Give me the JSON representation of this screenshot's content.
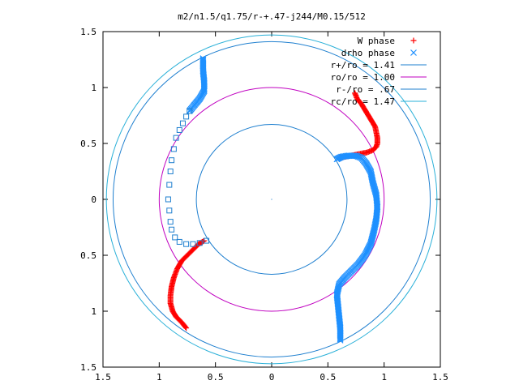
{
  "chart_data": {
    "type": "scatter",
    "title": "m2/n1.5/q1.75/r-+.47-j244/M0.15/512",
    "xlim": [
      -1.5,
      1.5
    ],
    "ylim": [
      -1.5,
      1.5
    ],
    "x_ticks": [
      -1.5,
      -1,
      -0.5,
      0,
      0.5,
      1,
      1.5
    ],
    "x_tick_labels": [
      "1.5",
      "1",
      "0.5",
      "0",
      "0.5",
      "1",
      "1.5"
    ],
    "y_ticks": [
      1.5,
      1,
      0.5,
      0,
      -0.5,
      -1,
      -1.5
    ],
    "y_tick_labels": [
      "1.5",
      "1",
      "0.5",
      "0",
      "0.5",
      "1",
      "1.5"
    ],
    "grid": false,
    "legend_position": "top-right",
    "colors": {
      "w_phase": "#ff0000",
      "drho_phase": "#1e90ff",
      "r_plus": "#1e7fcf",
      "r_o": "#c000c0",
      "r_minus": "#1e7fcf",
      "r_c": "#2ab0d8",
      "squares": "#1e7fcf"
    },
    "series": [
      {
        "name": "W phase",
        "marker": "plus",
        "points": [
          [
            0.74,
            0.95
          ],
          [
            0.76,
            0.9
          ],
          [
            0.8,
            0.85
          ],
          [
            0.83,
            0.8
          ],
          [
            0.86,
            0.75
          ],
          [
            0.89,
            0.7
          ],
          [
            0.92,
            0.65
          ],
          [
            0.93,
            0.6
          ],
          [
            0.94,
            0.55
          ],
          [
            0.94,
            0.5
          ],
          [
            0.93,
            0.47
          ],
          [
            0.9,
            0.44
          ],
          [
            0.85,
            0.42
          ],
          [
            0.8,
            0.41
          ],
          [
            0.75,
            0.4
          ],
          [
            0.7,
            0.39
          ],
          [
            0.65,
            0.38
          ],
          [
            0.6,
            0.37
          ],
          [
            -0.6,
            -0.37
          ],
          [
            -0.65,
            -0.4
          ],
          [
            -0.7,
            -0.45
          ],
          [
            -0.75,
            -0.5
          ],
          [
            -0.8,
            -0.55
          ],
          [
            -0.84,
            -0.62
          ],
          [
            -0.87,
            -0.7
          ],
          [
            -0.89,
            -0.78
          ],
          [
            -0.9,
            -0.86
          ],
          [
            -0.9,
            -0.93
          ],
          [
            -0.88,
            -1.0
          ],
          [
            -0.85,
            -1.05
          ],
          [
            -0.8,
            -1.1
          ],
          [
            -0.76,
            -1.15
          ]
        ]
      },
      {
        "name": "drho phase",
        "marker": "cross",
        "points": [
          [
            0.58,
            0.36
          ],
          [
            0.62,
            0.38
          ],
          [
            0.68,
            0.39
          ],
          [
            0.75,
            0.39
          ],
          [
            0.8,
            0.37
          ],
          [
            0.84,
            0.32
          ],
          [
            0.88,
            0.25
          ],
          [
            0.9,
            0.15
          ],
          [
            0.93,
            0.04
          ],
          [
            0.94,
            -0.07
          ],
          [
            0.93,
            -0.18
          ],
          [
            0.91,
            -0.28
          ],
          [
            0.88,
            -0.4
          ],
          [
            0.83,
            -0.5
          ],
          [
            0.77,
            -0.58
          ],
          [
            0.71,
            -0.64
          ],
          [
            0.65,
            -0.7
          ],
          [
            0.6,
            -0.76
          ],
          [
            0.58,
            -0.85
          ],
          [
            0.59,
            -0.95
          ],
          [
            0.6,
            -1.05
          ],
          [
            0.61,
            -1.15
          ],
          [
            0.61,
            -1.26
          ],
          [
            -0.61,
            1.26
          ],
          [
            -0.61,
            1.15
          ],
          [
            -0.6,
            1.05
          ],
          [
            -0.6,
            0.97
          ],
          [
            -0.64,
            0.9
          ],
          [
            -0.69,
            0.84
          ],
          [
            -0.73,
            0.79
          ]
        ]
      }
    ],
    "extra_markers": {
      "marker": "square",
      "points": [
        [
          -0.73,
          0.79
        ],
        [
          -0.76,
          0.74
        ],
        [
          -0.79,
          0.68
        ],
        [
          -0.82,
          0.62
        ],
        [
          -0.85,
          0.55
        ],
        [
          -0.87,
          0.45
        ],
        [
          -0.89,
          0.35
        ],
        [
          -0.9,
          0.25
        ],
        [
          -0.91,
          0.13
        ],
        [
          -0.92,
          0.0
        ],
        [
          -0.91,
          -0.1
        ],
        [
          -0.9,
          -0.2
        ],
        [
          -0.89,
          -0.27
        ],
        [
          -0.86,
          -0.34
        ],
        [
          -0.82,
          -0.38
        ],
        [
          -0.76,
          -0.4
        ],
        [
          -0.7,
          -0.4
        ],
        [
          -0.64,
          -0.39
        ],
        [
          -0.58,
          -0.37
        ]
      ]
    },
    "circles": [
      {
        "name": "r+/ro = 1.41",
        "radius": 1.41,
        "color_key": "r_plus"
      },
      {
        "name": "ro/ro = 1.00",
        "radius": 1.0,
        "color_key": "r_o"
      },
      {
        "name": "r-/ro = .67",
        "radius": 0.67,
        "color_key": "r_minus"
      },
      {
        "name": "rc/ro = 1.47",
        "radius": 1.47,
        "color_key": "r_c"
      }
    ],
    "legend": [
      {
        "label": "W phase",
        "kind": "plus",
        "color_key": "w_phase"
      },
      {
        "label": "drho phase",
        "kind": "cross",
        "color_key": "drho_phase"
      },
      {
        "label": "r+/ro = 1.41",
        "kind": "line",
        "color_key": "r_plus"
      },
      {
        "label": "ro/ro = 1.00",
        "kind": "line",
        "color_key": "r_o"
      },
      {
        "label": "r-/ro = .67",
        "kind": "line",
        "color_key": "r_minus"
      },
      {
        "label": "rc/ro = 1.47",
        "kind": "line",
        "color_key": "r_c"
      }
    ]
  }
}
